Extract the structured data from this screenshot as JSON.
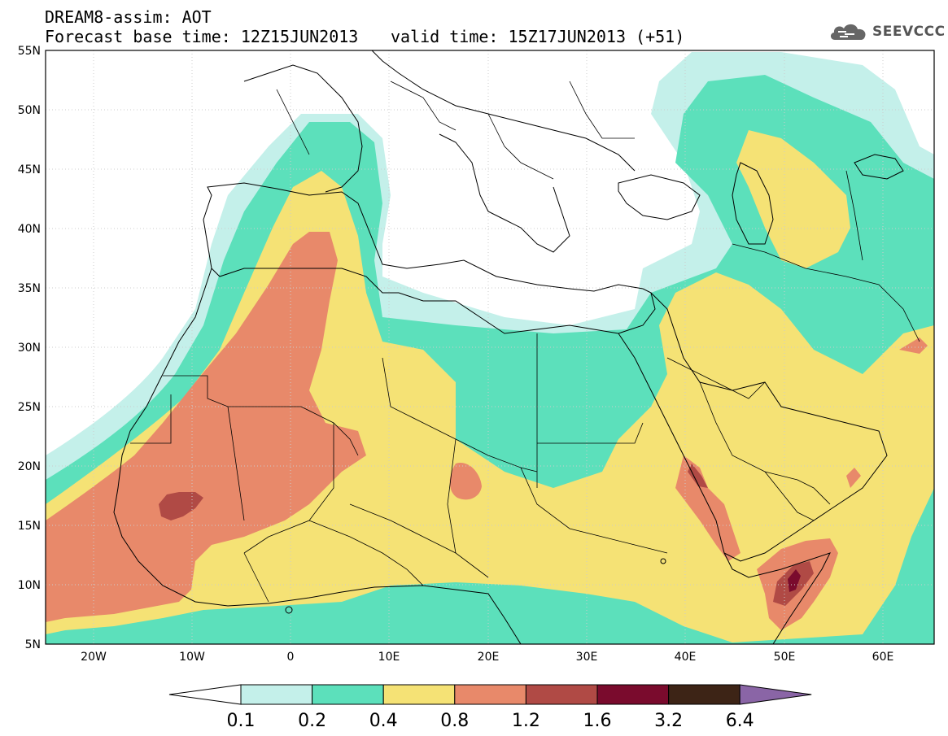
{
  "title": {
    "line1": "DREAM8-assim: AOT",
    "line2": "Forecast base time: 12Z15JUN2013",
    "valid": "valid time: 15Z17JUN2013 (+51)"
  },
  "logo": {
    "text": "SEEVCCC",
    "icon": "cloud-icon"
  },
  "map": {
    "lat_labels": [
      "55N",
      "50N",
      "45N",
      "40N",
      "35N",
      "30N",
      "25N",
      "20N",
      "15N",
      "10N",
      "5N"
    ],
    "lon_labels": [
      "20W",
      "10W",
      "0",
      "10E",
      "20E",
      "30E",
      "40E",
      "50E",
      "60E"
    ],
    "lat_range": [
      5,
      55
    ],
    "lon_range": [
      -25,
      65
    ],
    "land_color": "#ffffff",
    "border_color": "#000000"
  },
  "colorbar": {
    "labels": [
      "0.1",
      "0.2",
      "0.4",
      "0.8",
      "1.2",
      "1.6",
      "3.2",
      "6.4"
    ],
    "colors": [
      "#c4f0ea",
      "#5ce0bb",
      "#f5e275",
      "#e8896a",
      "#b04a45",
      "#7a0b2d",
      "#3d2416",
      "#8a65a6"
    ],
    "under_color": "#ffffff"
  },
  "chart_data": {
    "type": "heatmap",
    "title": "DREAM8-assim: AOT",
    "levels": [
      0.1,
      0.2,
      0.4,
      0.8,
      1.2,
      1.6,
      3.2,
      6.4
    ],
    "xlabel": "",
    "ylabel": "",
    "xlim": [
      -25,
      65
    ],
    "ylim": [
      5,
      55
    ],
    "grid": true
  }
}
